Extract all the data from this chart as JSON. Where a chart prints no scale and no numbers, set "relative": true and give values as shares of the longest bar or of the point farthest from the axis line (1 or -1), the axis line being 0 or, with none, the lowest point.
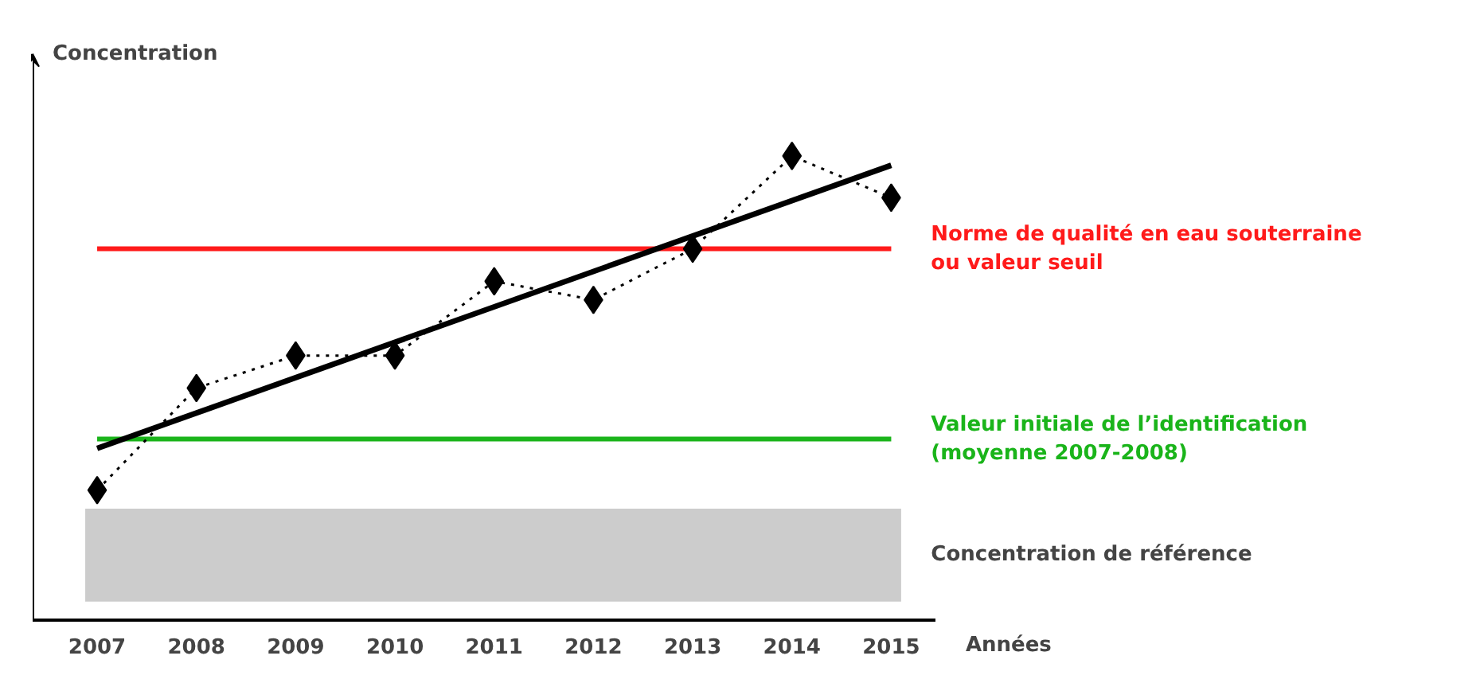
{
  "chart_data": {
    "type": "line",
    "relative": true,
    "ylabel": "Concentration",
    "xlabel": "Années",
    "categories": [
      "2007",
      "2008",
      "2009",
      "2010",
      "2011",
      "2012",
      "2013",
      "2014",
      "2015"
    ],
    "grid": false,
    "series": [
      {
        "color": "#000000",
        "marker": "diamond",
        "line_style": "dotted",
        "values": [
          0.28,
          0.5,
          0.57,
          0.57,
          0.73,
          0.69,
          0.8,
          1.0,
          0.91
        ]
      },
      {
        "type": "line",
        "color": "#000000",
        "marker": "none",
        "line_style": "solid",
        "values": [
          0.37,
          null,
          null,
          null,
          null,
          null,
          null,
          null,
          0.98
        ]
      }
    ],
    "ref_lines": [
      {
        "axis": "y",
        "value": 0.8,
        "label": "Norme de qualité en eau souterraine\nou valeur seuil",
        "color": "#ff1a1a",
        "line_style": "solid"
      },
      {
        "axis": "y",
        "value": 0.39,
        "label": "Valeur initiale de l’identification\n(moyenne 2007-2008)",
        "color": "#1ab41a",
        "line_style": "solid"
      }
    ],
    "bands": [
      {
        "axis": "y",
        "from": 0.04,
        "to": 0.24,
        "label": "Concentration de référence",
        "color": "#cccccc"
      }
    ]
  }
}
